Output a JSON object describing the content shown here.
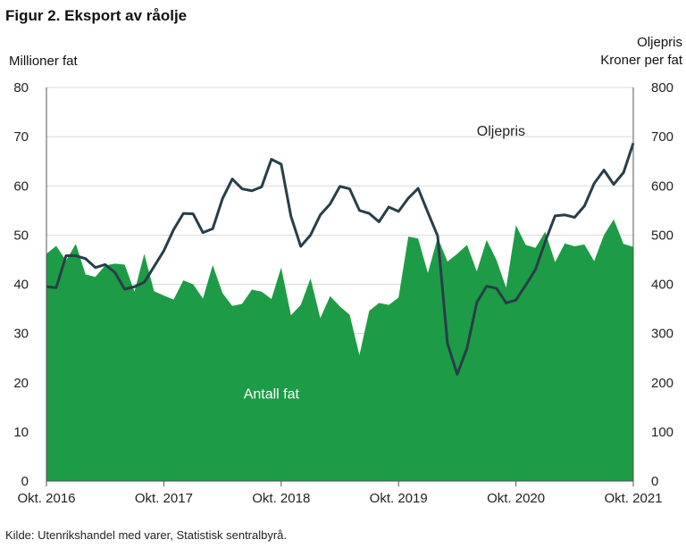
{
  "header": {
    "title": "Figur 2. Eksport av råolje"
  },
  "source": "Kilde: Utenrikshandel med varer, Statistisk sentralbyrå.",
  "colors": {
    "area": "#1e9b46",
    "line": "#283e48",
    "grid": "#d9d9d9",
    "axis": "#555555"
  },
  "chart_data": {
    "type": "area",
    "title": "Figur 2. Eksport av råolje",
    "ylabel_left": "Millioner fat",
    "ylabel_right_line1": "Oljepris",
    "ylabel_right_line2": "Kroner per fat",
    "ylim_left": [
      0,
      80
    ],
    "ylim_right": [
      0,
      800
    ],
    "yticks_left": [
      0,
      10,
      20,
      30,
      40,
      50,
      60,
      70,
      80
    ],
    "yticks_right": [
      0,
      100,
      200,
      300,
      400,
      500,
      600,
      700,
      800
    ],
    "x_start": "2016-10",
    "x_end": "2021-10",
    "x_tick_labels": [
      "Okt. 2016",
      "Okt. 2017",
      "Okt. 2018",
      "Okt. 2019",
      "Okt. 2020",
      "Okt. 2021"
    ],
    "grid": true,
    "series": [
      {
        "name": "Antall fat",
        "type": "area",
        "axis": "left",
        "values": [
          46.2,
          47.8,
          44.8,
          48.2,
          42,
          41.5,
          43.8,
          44.2,
          44,
          38.5,
          46.2,
          38.6,
          37.7,
          36.9,
          40.8,
          40,
          37.1,
          43.9,
          38.2,
          35.6,
          36,
          38.9,
          38.5,
          37,
          43.4,
          33.7,
          35.8,
          41.2,
          33.1,
          37.6,
          35.5,
          33.8,
          25.6,
          34.6,
          36.2,
          35.8,
          37.3,
          49.7,
          49.3,
          42.3,
          49.5,
          44.6,
          46.2,
          48,
          42.6,
          49,
          45,
          39.3,
          52,
          48,
          47.4,
          50.7,
          44.5,
          48.3,
          47.7,
          48.1,
          44.7,
          50,
          53.2,
          48.2,
          47.6
        ]
      },
      {
        "name": "Oljepris",
        "type": "line",
        "axis": "right",
        "values": [
          395,
          393,
          458,
          458,
          452,
          434,
          440,
          424,
          390,
          395,
          404,
          436,
          468,
          511,
          544,
          543,
          505,
          513,
          574,
          614,
          594,
          590,
          598,
          654,
          644,
          538,
          477,
          500,
          541,
          563,
          599,
          594,
          550,
          544,
          527,
          557,
          548,
          575,
          595,
          546,
          498,
          280,
          217,
          270,
          363,
          396,
          392,
          362,
          368,
          398,
          430,
          487,
          539,
          541,
          536,
          559,
          605,
          632,
          603,
          627,
          687
        ]
      }
    ],
    "annotations": [
      {
        "text": "Oljepris",
        "series": "Oljepris"
      },
      {
        "text": "Antall fat",
        "series": "Antall fat"
      }
    ]
  }
}
